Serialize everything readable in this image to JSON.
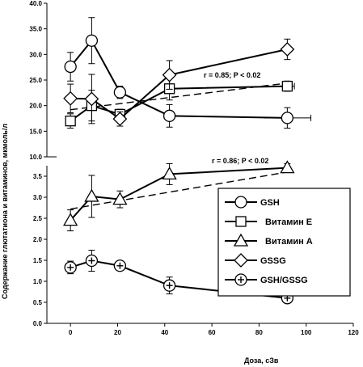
{
  "chart_data": {
    "type": "line",
    "xlabel": "Доза, сЗв",
    "ylabel": "Содержание глютатиона и витаминов, мкмоль/л",
    "xlim": [
      -10,
      120
    ],
    "xticks": [
      "0",
      "20",
      "40",
      "60",
      "80",
      "100",
      "120"
    ],
    "grid": false,
    "legend_position": "center-right",
    "legend": [
      "GSH",
      "Витамин Е",
      "Витамин А",
      "GSSG",
      "GSH/GSSG"
    ],
    "panels": [
      {
        "name": "upper",
        "ylim": [
          10,
          40
        ],
        "yticks": [
          "10.0",
          "15.0",
          "20.0",
          "25.0",
          "30.0",
          "35.0",
          "40.0"
        ],
        "annotation": "r = 0.85; P < 0.02",
        "series": [
          {
            "name": "GSH",
            "marker": "circle",
            "x": [
              0,
              9,
              21,
              42,
              92
            ],
            "y": [
              27.6,
              32.7,
              22.6,
              18.0,
              17.6
            ],
            "err": [
              2.8,
              4.5,
              1.2,
              2.2,
              2.0
            ],
            "xerr": [
              0,
              0,
              0,
              0,
              10
            ]
          },
          {
            "name": "Витамин Е",
            "marker": "square",
            "x": [
              0,
              9,
              21,
              42,
              92
            ],
            "y": [
              17.0,
              20.0,
              18.3,
              23.3,
              23.8
            ],
            "err": [
              1.4,
              3.0,
              1.0,
              2.2,
              1.0
            ],
            "xerr": [
              0,
              0,
              0,
              2,
              3
            ]
          },
          {
            "name": "GSSG",
            "marker": "diamond",
            "x": [
              0,
              9,
              21,
              42,
              92
            ],
            "y": [
              21.4,
              21.3,
              17.4,
              26.0,
              31.0
            ],
            "err": [
              2.8,
              4.8,
              1.4,
              2.8,
              2.0
            ],
            "xerr": [
              0,
              0,
              0,
              0,
              0
            ]
          }
        ],
        "trend": {
          "x": [
            0,
            92
          ],
          "y": [
            19.2,
            24.4
          ]
        }
      },
      {
        "name": "lower",
        "ylim": [
          0,
          3.75
        ],
        "yticks": [
          "0.0",
          "0.5",
          "1.0",
          "1.5",
          "2.0",
          "2.5",
          "3.0",
          "3.5"
        ],
        "annotation": "r = 0.86; P < 0.02",
        "series": [
          {
            "name": "Витамин А",
            "marker": "triangle",
            "x": [
              0,
              9,
              21,
              42,
              92
            ],
            "y": [
              2.45,
              3.02,
              2.95,
              3.55,
              3.7
            ],
            "err": [
              0.25,
              0.5,
              0.2,
              0.25,
              0.1
            ],
            "xerr": [
              0,
              0,
              0,
              0,
              0
            ]
          },
          {
            "name": "GSH/GSSG",
            "marker": "circle-plus",
            "x": [
              0,
              9,
              21,
              42,
              92
            ],
            "y": [
              1.33,
              1.49,
              1.37,
              0.9,
              0.6
            ],
            "err": [
              0.15,
              0.25,
              0.1,
              0.2,
              0.05
            ],
            "xerr": [
              0,
              0,
              0,
              0,
              0
            ]
          }
        ],
        "trend": {
          "x": [
            0,
            92
          ],
          "y": [
            2.72,
            3.6
          ]
        }
      }
    ]
  }
}
